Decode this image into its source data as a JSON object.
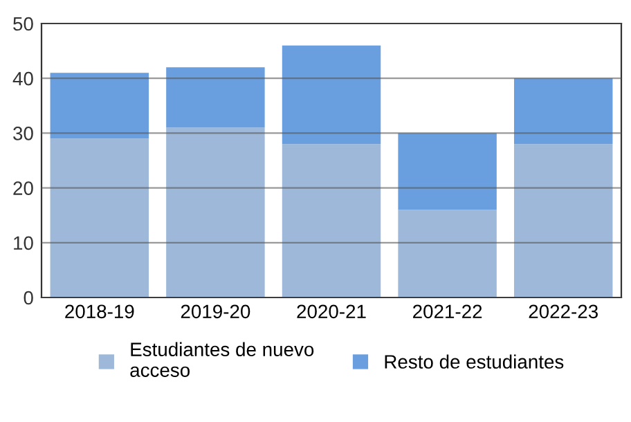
{
  "chart_data": {
    "type": "bar",
    "stacked": true,
    "categories": [
      "2018-19",
      "2019-20",
      "2020-21",
      "2021-22",
      "2022-23"
    ],
    "series": [
      {
        "name": "Estudiantes de nuevo\nacceso",
        "color": "#9db8d8",
        "values": [
          29,
          31,
          28,
          16,
          28
        ]
      },
      {
        "name": "Resto de estudiantes",
        "color": "#6a9fdf",
        "values": [
          12,
          11,
          18,
          14,
          12
        ]
      }
    ],
    "ylim": [
      0,
      50
    ],
    "yticks": [
      0,
      10,
      20,
      30,
      40,
      50
    ],
    "grid": "y",
    "legend": "bottom"
  }
}
